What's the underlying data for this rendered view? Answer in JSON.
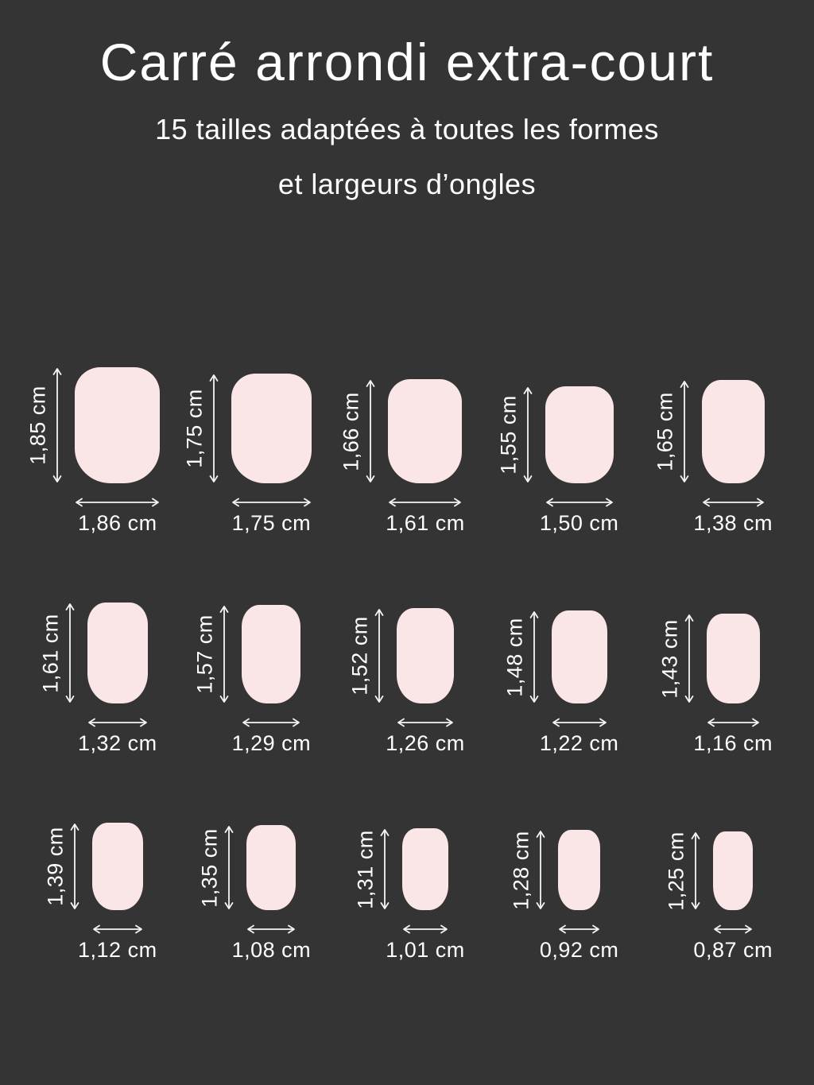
{
  "page": {
    "title": "Carré arrondi extra-court",
    "subtitle_line1": "15 tailles adaptées à toutes les formes",
    "subtitle_line2": "et largeurs d’ongles"
  },
  "colors": {
    "background": "#343434",
    "nail_fill": "#fbe6e7",
    "text": "#ffffff",
    "arrow": "#f5f5f5"
  },
  "unit": "cm",
  "nails": [
    {
      "height_label": "1,85 cm",
      "width_label": "1,86 cm",
      "height_cm": 1.85,
      "width_cm": 1.86
    },
    {
      "height_label": "1,75 cm",
      "width_label": "1,75 cm",
      "height_cm": 1.75,
      "width_cm": 1.75
    },
    {
      "height_label": "1,66 cm",
      "width_label": "1,61 cm",
      "height_cm": 1.66,
      "width_cm": 1.61
    },
    {
      "height_label": "1,55 cm",
      "width_label": "1,50 cm",
      "height_cm": 1.55,
      "width_cm": 1.5
    },
    {
      "height_label": "1,65 cm",
      "width_label": "1,38 cm",
      "height_cm": 1.65,
      "width_cm": 1.38
    },
    {
      "height_label": "1,61 cm",
      "width_label": "1,32 cm",
      "height_cm": 1.61,
      "width_cm": 1.32
    },
    {
      "height_label": "1,57 cm",
      "width_label": "1,29 cm",
      "height_cm": 1.57,
      "width_cm": 1.29
    },
    {
      "height_label": "1,52 cm",
      "width_label": "1,26 cm",
      "height_cm": 1.52,
      "width_cm": 1.26
    },
    {
      "height_label": "1,48 cm",
      "width_label": "1,22 cm",
      "height_cm": 1.48,
      "width_cm": 1.22
    },
    {
      "height_label": "1,43 cm",
      "width_label": "1,16 cm",
      "height_cm": 1.43,
      "width_cm": 1.16
    },
    {
      "height_label": "1,39 cm",
      "width_label": "1,12 cm",
      "height_cm": 1.39,
      "width_cm": 1.12
    },
    {
      "height_label": "1,35 cm",
      "width_label": "1,08 cm",
      "height_cm": 1.35,
      "width_cm": 1.08
    },
    {
      "height_label": "1,31 cm",
      "width_label": "1,01 cm",
      "height_cm": 1.31,
      "width_cm": 1.01
    },
    {
      "height_label": "1,28 cm",
      "width_label": "0,92 cm",
      "height_cm": 1.28,
      "width_cm": 0.92
    },
    {
      "height_label": "1,25 cm",
      "width_label": "0,87 cm",
      "height_cm": 1.25,
      "width_cm": 0.87
    }
  ]
}
